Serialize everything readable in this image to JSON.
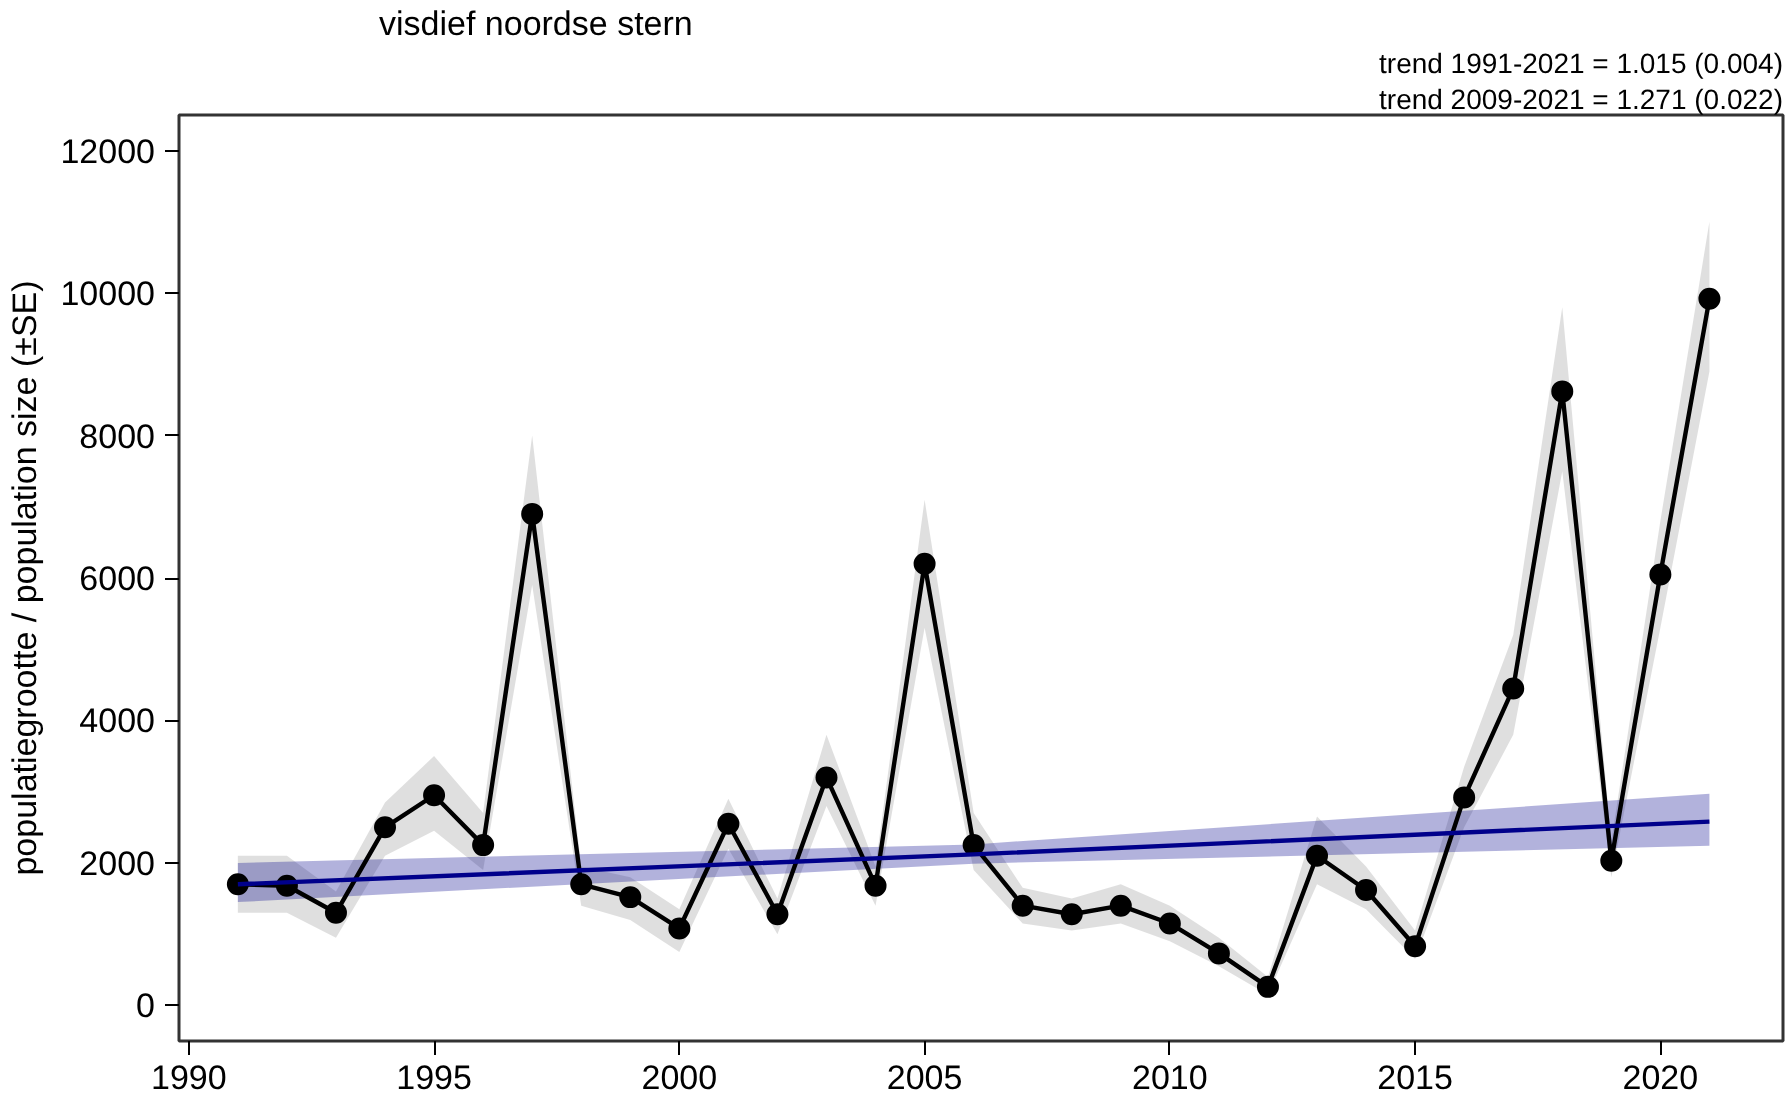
{
  "chart_data": {
    "type": "line",
    "title": "visdief noordse stern",
    "ylabel": "populatiegrootte / population size (±SE)",
    "annotations": [
      "trend 1991-2021 = 1.015 (0.004)",
      "trend 2009-2021 = 1.271 (0.022)"
    ],
    "x": [
      1991,
      1992,
      1993,
      1994,
      1995,
      1996,
      1997,
      1998,
      1999,
      2000,
      2001,
      2002,
      2003,
      2004,
      2005,
      2006,
      2007,
      2008,
      2009,
      2010,
      2011,
      2012,
      2013,
      2014,
      2015,
      2016,
      2017,
      2018,
      2019,
      2020,
      2021
    ],
    "series": [
      {
        "color": "#000000",
        "marker": "circle",
        "values": [
          1700,
          1680,
          1300,
          2500,
          2950,
          2250,
          6900,
          1700,
          1520,
          1080,
          2550,
          1280,
          3200,
          1680,
          6200,
          2250,
          1400,
          1280,
          1400,
          1150,
          730,
          260,
          2100,
          1620,
          830,
          2920,
          4450,
          8620,
          2030,
          6050,
          9920
        ],
        "lower": [
          1300,
          1300,
          950,
          2100,
          2450,
          1900,
          5900,
          1400,
          1200,
          750,
          2200,
          1000,
          2800,
          1400,
          5300,
          1900,
          1150,
          1050,
          1150,
          900,
          550,
          150,
          1700,
          1350,
          650,
          2500,
          3800,
          7500,
          1800,
          5300,
          8900
        ],
        "upper": [
          2100,
          2100,
          1600,
          2850,
          3500,
          2700,
          8000,
          1950,
          1800,
          1350,
          2900,
          1500,
          3800,
          1950,
          7100,
          2700,
          1650,
          1500,
          1700,
          1400,
          950,
          400,
          2650,
          1950,
          1050,
          3350,
          5200,
          9800,
          2300,
          6800,
          11000
        ]
      },
      {
        "color": "#00008b",
        "marker": "none",
        "x": [
          1991,
          2006,
          2021
        ],
        "values": [
          1700,
          2120,
          2580
        ],
        "lower": [
          1450,
          1990,
          2240
        ],
        "upper": [
          2000,
          2260,
          2970
        ]
      }
    ],
    "xlim": [
      1989.8,
      2022.5
    ],
    "ylim": [
      -500,
      12500
    ],
    "xticks": [
      1990,
      1995,
      2000,
      2005,
      2010,
      2015,
      2020
    ],
    "yticks": [
      0,
      2000,
      4000,
      6000,
      8000,
      10000,
      12000
    ],
    "grid": false,
    "line_style": "solid"
  }
}
